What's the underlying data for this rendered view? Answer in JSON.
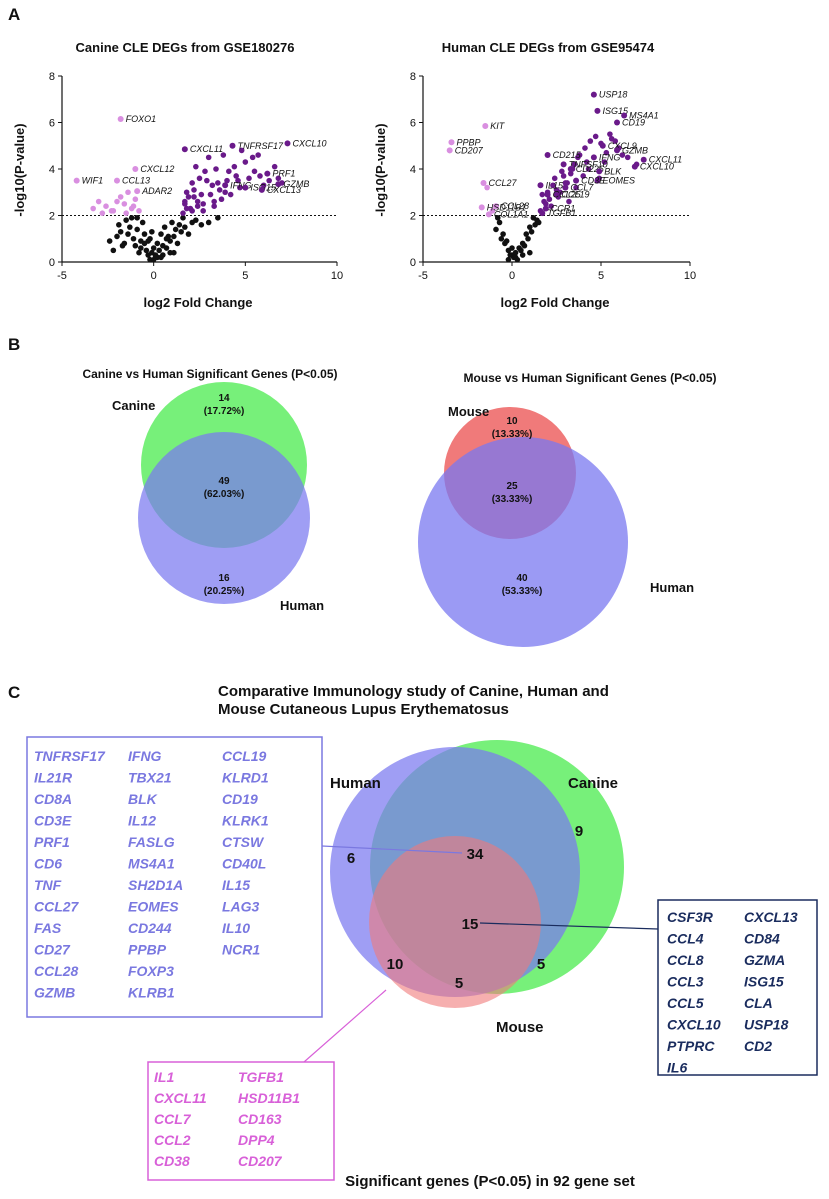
{
  "panels": {
    "A": "A",
    "B": "B",
    "C": "C"
  },
  "chart_data": [
    {
      "type": "scatter",
      "title": "Canine CLE DEGs from GSE180276",
      "xlabel": "log2 Fold Change",
      "ylabel": "-log10(P-value)",
      "xlim": [
        -5,
        10
      ],
      "ylim": [
        0,
        8
      ],
      "xticks": [
        -5,
        0,
        5,
        10
      ],
      "yticks": [
        0,
        2,
        4,
        6,
        8
      ],
      "threshold_y": 2,
      "colors": {
        "up": "#6a1a8a",
        "down": "#d98fe0",
        "ns": "#111111"
      },
      "labeled_points": [
        {
          "x": -1.8,
          "y": 6.15,
          "label": "FOXO1",
          "group": "down"
        },
        {
          "x": -4.2,
          "y": 3.5,
          "label": "WIF1",
          "group": "down"
        },
        {
          "x": -1.0,
          "y": 4.0,
          "label": "CXCL12",
          "group": "down"
        },
        {
          "x": -2.0,
          "y": 3.5,
          "label": "CCL13",
          "group": "down"
        },
        {
          "x": -0.9,
          "y": 3.05,
          "label": "ADAR2",
          "group": "down"
        },
        {
          "x": 1.7,
          "y": 4.85,
          "label": "CXCL11",
          "group": "up"
        },
        {
          "x": 4.3,
          "y": 5.0,
          "label": "TNFRSF17",
          "group": "up"
        },
        {
          "x": 7.3,
          "y": 5.1,
          "label": "CXCL10",
          "group": "up"
        },
        {
          "x": 6.2,
          "y": 3.8,
          "label": "PRF1",
          "group": "up"
        },
        {
          "x": 6.8,
          "y": 3.35,
          "label": "GZMB",
          "group": "up"
        },
        {
          "x": 3.9,
          "y": 3.3,
          "label": "IFNG",
          "group": "up"
        },
        {
          "x": 5.0,
          "y": 3.2,
          "label": "ISG15",
          "group": "up"
        },
        {
          "x": 5.9,
          "y": 3.1,
          "label": "CXCL13",
          "group": "up"
        }
      ],
      "up": {
        "x": [
          1.6,
          1.7,
          1.8,
          2.0,
          2.1,
          2.2,
          2.3,
          2.4,
          2.5,
          2.7,
          2.8,
          3.0,
          3.1,
          3.2,
          3.3,
          3.4,
          3.6,
          3.7,
          3.8,
          4.0,
          4.2,
          4.4,
          4.5,
          4.7,
          4.8,
          5.0,
          5.2,
          5.4,
          5.5,
          5.7,
          6.0,
          6.3,
          6.6,
          7.0,
          1.9,
          2.6,
          3.5,
          2.9,
          1.8,
          2.2,
          4.6,
          3.9,
          2.4,
          5.8,
          6.8,
          3.3,
          2.1,
          2.7,
          4.1,
          1.7
        ],
        "y": [
          2.1,
          2.5,
          3.0,
          2.3,
          3.4,
          2.8,
          4.1,
          2.6,
          3.6,
          2.2,
          3.9,
          4.5,
          2.9,
          3.3,
          2.4,
          4.0,
          3.1,
          2.7,
          4.6,
          3.5,
          2.9,
          4.1,
          3.7,
          3.2,
          4.8,
          4.3,
          3.6,
          4.5,
          3.9,
          4.6,
          3.3,
          3.5,
          4.1,
          3.4,
          2.8,
          2.9,
          3.4,
          3.5,
          2.3,
          3.1,
          3.5,
          3.0,
          2.4,
          3.7,
          3.6,
          2.6,
          2.2,
          2.5,
          3.9,
          2.6
        ]
      },
      "down": {
        "x": [
          -1.2,
          -1.5,
          -2.0,
          -2.3,
          -2.6,
          -3.0,
          -3.3,
          -1.8,
          -1.0,
          -0.8,
          -1.4,
          -2.8,
          -1.1,
          -1.6,
          -2.2
        ],
        "y": [
          2.3,
          2.1,
          2.6,
          2.2,
          2.4,
          2.6,
          2.3,
          2.8,
          2.7,
          2.2,
          3.0,
          2.1,
          2.4,
          2.5,
          2.2
        ]
      },
      "ns": {
        "x": [
          -2.4,
          -2.0,
          -1.8,
          -1.6,
          -1.3,
          -1.1,
          -0.9,
          -0.7,
          -0.5,
          -0.3,
          -0.1,
          0.1,
          0.3,
          0.5,
          0.7,
          0.9,
          1.1,
          1.3,
          1.5,
          -1.5,
          -0.9,
          -0.6,
          -0.2,
          0.0,
          0.2,
          0.4,
          0.6,
          0.8,
          1.0,
          1.2,
          -1.9,
          -1.4,
          -1.0,
          -0.4,
          0.2,
          0.5,
          1.4,
          1.6,
          -0.2,
          0.0,
          0.1,
          -0.3,
          -0.7,
          0.9,
          1.7,
          2.3,
          2.6,
          3.0,
          3.5,
          -2.2,
          -1.7,
          -0.8,
          0.4,
          1.1,
          -1.2,
          -0.5,
          0.7,
          1.9,
          2.1,
          -0.1
        ],
        "y": [
          0.9,
          1.1,
          1.3,
          0.8,
          1.5,
          1.0,
          1.4,
          0.6,
          1.2,
          0.9,
          0.4,
          0.3,
          0.5,
          0.7,
          0.6,
          0.9,
          1.1,
          0.8,
          1.3,
          1.8,
          1.9,
          1.7,
          1.0,
          0.6,
          0.8,
          1.2,
          1.5,
          1.1,
          1.7,
          1.4,
          1.6,
          1.2,
          0.7,
          0.5,
          0.2,
          0.3,
          1.6,
          1.9,
          0.1,
          0.1,
          0.2,
          0.3,
          0.9,
          0.4,
          1.5,
          1.8,
          1.6,
          1.7,
          1.9,
          0.5,
          0.7,
          0.4,
          0.2,
          0.4,
          1.9,
          0.8,
          1.0,
          1.2,
          1.7,
          1.3
        ]
      }
    },
    {
      "type": "scatter",
      "title": "Human CLE DEGs from GSE95474",
      "xlabel": "log2 Fold Change",
      "ylabel": "-log10(P-value)",
      "xlim": [
        -5,
        10
      ],
      "ylim": [
        0,
        8
      ],
      "xticks": [
        -5,
        0,
        5,
        10
      ],
      "yticks": [
        0,
        2,
        4,
        6,
        8
      ],
      "threshold_y": 2,
      "colors": {
        "up": "#6a1a8a",
        "down": "#d98fe0",
        "ns": "#111111"
      },
      "labeled_points": [
        {
          "x": 4.6,
          "y": 7.2,
          "label": "USP18",
          "group": "up"
        },
        {
          "x": 4.8,
          "y": 6.5,
          "label": "ISG15",
          "group": "up"
        },
        {
          "x": 6.3,
          "y": 6.3,
          "label": "MS4A1",
          "group": "up"
        },
        {
          "x": 5.9,
          "y": 6.0,
          "label": "CD19",
          "group": "up"
        },
        {
          "x": -1.5,
          "y": 5.85,
          "label": "KIT",
          "group": "down"
        },
        {
          "x": -3.4,
          "y": 5.15,
          "label": "PPBP",
          "group": "down"
        },
        {
          "x": -3.5,
          "y": 4.8,
          "label": "CD207",
          "group": "down"
        },
        {
          "x": 2.0,
          "y": 4.6,
          "label": "CD215",
          "group": "up"
        },
        {
          "x": 5.1,
          "y": 5.0,
          "label": "CXCL9",
          "group": "up"
        },
        {
          "x": 5.9,
          "y": 4.8,
          "label": "GZMB",
          "group": "up"
        },
        {
          "x": 4.6,
          "y": 4.5,
          "label": "IFNG",
          "group": "up"
        },
        {
          "x": 7.4,
          "y": 4.4,
          "label": "CXCL11",
          "group": "up"
        },
        {
          "x": 6.9,
          "y": 4.1,
          "label": "CXCL10",
          "group": "up"
        },
        {
          "x": 2.9,
          "y": 4.2,
          "label": "TNFSF10",
          "group": "up"
        },
        {
          "x": 3.3,
          "y": 4.0,
          "label": "CD226",
          "group": "up"
        },
        {
          "x": 4.9,
          "y": 3.9,
          "label": "BLK",
          "group": "up"
        },
        {
          "x": 4.8,
          "y": 3.5,
          "label": "EOMES",
          "group": "up"
        },
        {
          "x": 3.6,
          "y": 3.5,
          "label": "CD3E",
          "group": "up"
        },
        {
          "x": 3.0,
          "y": 3.2,
          "label": "CCL7",
          "group": "up"
        },
        {
          "x": 2.5,
          "y": 2.9,
          "label": "CCL19",
          "group": "up"
        },
        {
          "x": 1.6,
          "y": 3.3,
          "label": "IL15",
          "group": "up"
        },
        {
          "x": 2.0,
          "y": 2.9,
          "label": "CCL25",
          "group": "up"
        },
        {
          "x": -1.6,
          "y": 3.4,
          "label": "CCL27",
          "group": "down"
        },
        {
          "x": -0.9,
          "y": 2.4,
          "label": "CCL28",
          "group": "down"
        },
        {
          "x": -1.7,
          "y": 2.35,
          "label": "HSD11B1",
          "group": "down"
        },
        {
          "x": -1.3,
          "y": 2.05,
          "label": "COL1A1",
          "group": "down"
        },
        {
          "x": 1.9,
          "y": 2.3,
          "label": "CCR1",
          "group": "up"
        },
        {
          "x": 1.7,
          "y": 2.1,
          "label": "TGFB1",
          "group": "up"
        }
      ],
      "up": {
        "x": [
          1.6,
          1.8,
          2.0,
          2.2,
          2.4,
          2.6,
          2.8,
          3.0,
          3.2,
          3.4,
          3.6,
          3.8,
          4.0,
          4.2,
          4.4,
          5.0,
          5.3,
          5.6,
          6.0,
          6.5,
          7.0,
          1.7,
          2.3,
          2.9,
          3.5,
          4.1,
          4.7,
          5.2,
          5.8,
          6.2,
          1.9,
          2.5,
          3.1,
          3.7,
          4.3,
          4.9,
          5.5,
          2.1,
          2.7,
          3.3
        ],
        "y": [
          2.2,
          2.6,
          3.0,
          2.4,
          3.6,
          2.8,
          3.9,
          3.4,
          2.6,
          4.0,
          3.2,
          4.6,
          3.7,
          4.3,
          5.2,
          5.1,
          4.7,
          5.3,
          4.9,
          4.5,
          4.2,
          2.9,
          3.3,
          3.7,
          4.2,
          4.9,
          5.4,
          4.3,
          5.2,
          4.6,
          2.5,
          3.1,
          3.4,
          4.5,
          4.0,
          3.6,
          5.5,
          2.7,
          3.0,
          3.8
        ]
      },
      "down": {
        "x": [
          -1.5,
          -3.4,
          -3.5,
          -1.6,
          -0.9,
          -1.7,
          -1.3,
          -1.4,
          -1.1
        ],
        "y": [
          5.85,
          5.15,
          4.8,
          3.4,
          2.4,
          2.35,
          2.05,
          3.2,
          2.2
        ]
      },
      "ns": {
        "x": [
          -0.9,
          -0.6,
          -0.4,
          -0.2,
          0.0,
          0.2,
          0.4,
          0.6,
          0.8,
          1.0,
          1.2,
          -0.7,
          -0.3,
          0.1,
          0.5,
          0.9,
          1.3,
          -0.5,
          -0.1,
          0.3,
          0.7,
          1.1,
          1.4,
          -0.8,
          0.0,
          0.6,
          1.0,
          1.5,
          0.2,
          -0.2
        ],
        "y": [
          1.4,
          1.0,
          0.8,
          0.5,
          0.3,
          0.4,
          0.6,
          0.8,
          1.2,
          1.5,
          1.9,
          1.7,
          0.9,
          0.2,
          0.5,
          1.0,
          1.6,
          1.2,
          0.3,
          0.1,
          0.7,
          1.3,
          1.8,
          1.9,
          0.6,
          0.3,
          0.4,
          1.7,
          0.2,
          0.1
        ]
      }
    },
    {
      "type": "venn",
      "title": "Canine vs Human Significant Genes (P<0.05)",
      "sets": [
        {
          "name": "Canine",
          "color": "#77f07a"
        },
        {
          "name": "Human",
          "color": "#7a78f0"
        }
      ],
      "regions": [
        {
          "sets": [
            "Canine"
          ],
          "count": "14",
          "percent": "(17.72%)"
        },
        {
          "sets": [
            "Canine",
            "Human"
          ],
          "count": "49",
          "percent": "(62.03%)"
        },
        {
          "sets": [
            "Human"
          ],
          "count": "16",
          "percent": "(20.25%)"
        }
      ]
    },
    {
      "type": "venn",
      "title": "Mouse vs Human Significant Genes (P<0.05)",
      "sets": [
        {
          "name": "Mouse",
          "color": "#f07a7a"
        },
        {
          "name": "Human",
          "color": "#7a78f0"
        }
      ],
      "regions": [
        {
          "sets": [
            "Mouse"
          ],
          "count": "10",
          "percent": "(13.33%)"
        },
        {
          "sets": [
            "Mouse",
            "Human"
          ],
          "count": "25",
          "percent": "(33.33%)"
        },
        {
          "sets": [
            "Human"
          ],
          "count": "40",
          "percent": "(53.33%)"
        }
      ]
    },
    {
      "type": "venn",
      "title": "Comparative Immunology study of Canine, Human and Mouse Cutaneous Lupus Erythematosus",
      "title_lines": [
        "Comparative Immunology study of Canine, Human and",
        "Mouse Cutaneous Lupus Erythematosus"
      ],
      "footer": "Significant genes (P<0.05) in 92 gene set",
      "sets": [
        {
          "name": "Human",
          "color": "#7a78f0"
        },
        {
          "name": "Canine",
          "color": "#77f07a"
        },
        {
          "name": "Mouse",
          "color": "#f07a7a"
        }
      ],
      "regions": [
        {
          "sets": [
            "Human"
          ],
          "count": "6"
        },
        {
          "sets": [
            "Canine"
          ],
          "count": "9"
        },
        {
          "sets": [
            "Mouse"
          ],
          "count": "5"
        },
        {
          "sets": [
            "Human",
            "Canine"
          ],
          "count": "34"
        },
        {
          "sets": [
            "Human",
            "Canine",
            "Mouse"
          ],
          "count": "15"
        },
        {
          "sets": [
            "Human",
            "Mouse"
          ],
          "count": "10"
        },
        {
          "sets": [
            "Canine",
            "Mouse"
          ],
          "count": "5"
        }
      ],
      "gene_lists": {
        "human_canine": {
          "color": "#7a78e0",
          "columns": [
            [
              "TNFRSF17",
              "IL21R",
              "CD8A",
              "CD3E",
              "PRF1",
              "CD6",
              "TNF",
              "CCL27",
              "FAS",
              "CD27",
              "CCL28",
              "GZMB"
            ],
            [
              "IFNG",
              "TBX21",
              "BLK",
              "IL12",
              "FASLG",
              "MS4A1",
              "SH2D1A",
              "EOMES",
              "CD244",
              "PPBP",
              "FOXP3",
              "KLRB1"
            ],
            [
              "CCL19",
              "KLRD1",
              "CD19",
              "KLRK1",
              "CTSW",
              "CD40L",
              "IL15",
              "LAG3",
              "IL10",
              "NCR1"
            ]
          ]
        },
        "human_mouse": {
          "color": "#d860d8",
          "columns": [
            [
              "IL1",
              "CXCL11",
              "CCL7",
              "CCL2",
              "CD38"
            ],
            [
              "TGFB1",
              "HSD11B1",
              "CD163",
              "DPP4",
              "CD207"
            ]
          ]
        },
        "all_three": {
          "color": "#1a2c5e",
          "columns": [
            [
              "CSF3R",
              "CCL4",
              "CCL8",
              "CCL3",
              "CCL5",
              "CXCL10",
              "PTPRC",
              "IL6"
            ],
            [
              "CXCL13",
              "CD84",
              "GZMA",
              "ISG15",
              "CLA",
              "USP18",
              "CD2"
            ]
          ]
        }
      }
    }
  ]
}
